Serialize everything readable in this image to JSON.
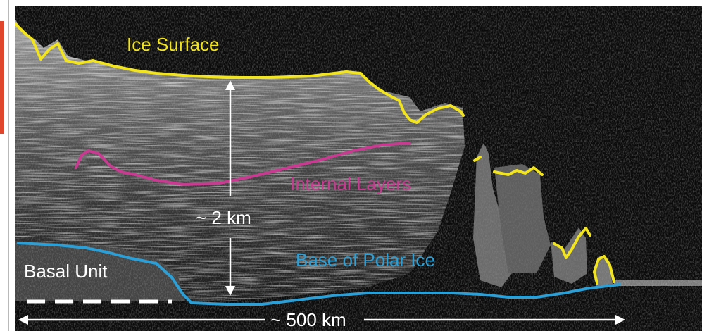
{
  "labels": {
    "ice_surface": "Ice Surface",
    "internal_layers": "Internal Layers",
    "base_of_polar_ice": "Base of Polar Ice",
    "basal_unit": "Basal Unit",
    "thickness": "~ 2 km",
    "distance": "~ 500 km"
  },
  "colors": {
    "ice_surface": "#f2e41d",
    "internal_layers": "#c83b91",
    "base_of_polar_ice": "#2b9fd6",
    "annotation": "#ffffff",
    "background": "#0a0a0a",
    "accent_tab": "#e0462b"
  }
}
